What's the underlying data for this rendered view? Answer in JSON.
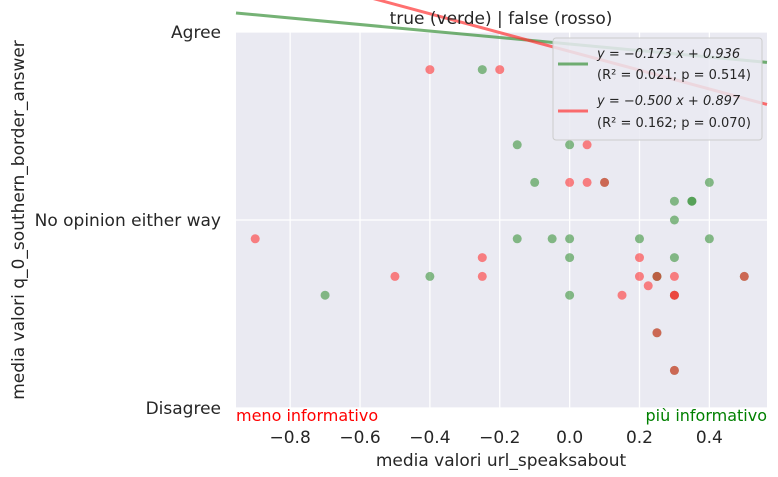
{
  "chart_data": {
    "type": "scatter",
    "title": "true (verde) | false (rosso)",
    "xlabel": "media valori url_speaksabout",
    "ylabel": "media valori q_0_southern_border_answer",
    "xlim": [
      -0.955,
      0.565
    ],
    "ylim": [
      -1,
      1
    ],
    "grid": true,
    "legend_position": "top-right",
    "x_ticks": [
      -0.8,
      -0.6,
      -0.4,
      -0.2,
      0.0,
      0.2,
      0.4
    ],
    "x_tick_labels": [
      "−0.8",
      "−0.6",
      "−0.4",
      "−0.2",
      "0.0",
      "0.2",
      "0.4"
    ],
    "y_ticks": [
      -1,
      0,
      1
    ],
    "y_tick_labels": [
      "Disagree",
      "No opinion either way",
      "Agree"
    ],
    "corner_labels": {
      "left": "meno informativo",
      "right": "più informativo",
      "left_color": "#ff0000",
      "right_color": "#008000"
    },
    "series": [
      {
        "color": "#3a923a",
        "points": [
          [
            -0.25,
            0.8
          ],
          [
            -0.15,
            0.4
          ],
          [
            0.0,
            0.4
          ],
          [
            -0.1,
            0.2
          ],
          [
            0.1,
            0.2
          ],
          [
            0.4,
            0.2
          ],
          [
            0.3,
            0.1
          ],
          [
            0.35,
            0.1
          ],
          [
            0.35,
            0.1
          ],
          [
            0.3,
            0.0
          ],
          [
            -0.15,
            -0.1
          ],
          [
            -0.05,
            -0.1
          ],
          [
            0.0,
            -0.1
          ],
          [
            0.2,
            -0.1
          ],
          [
            0.4,
            -0.1
          ],
          [
            0.0,
            -0.2
          ],
          [
            0.3,
            -0.2
          ],
          [
            -0.4,
            -0.3
          ],
          [
            0.25,
            -0.3
          ],
          [
            0.25,
            -0.3
          ],
          [
            0.5,
            -0.3
          ],
          [
            -0.7,
            -0.4
          ],
          [
            0.0,
            -0.4
          ],
          [
            0.3,
            -0.4
          ],
          [
            0.25,
            -0.6
          ],
          [
            0.3,
            -0.8
          ]
        ],
        "fit": {
          "slope": -0.173,
          "intercept": 0.936
        },
        "legend_line1": "y = −0.173 x + 0.936",
        "legend_line2": "(R² = 0.021; p = 0.514)"
      },
      {
        "color": "#ff3333",
        "points": [
          [
            -0.4,
            0.8
          ],
          [
            -0.2,
            0.8
          ],
          [
            0.05,
            0.4
          ],
          [
            0.0,
            0.2
          ],
          [
            0.05,
            0.2
          ],
          [
            0.1,
            0.2
          ],
          [
            -0.9,
            -0.1
          ],
          [
            -0.25,
            -0.2
          ],
          [
            0.2,
            -0.2
          ],
          [
            -0.5,
            -0.3
          ],
          [
            -0.25,
            -0.3
          ],
          [
            0.2,
            -0.3
          ],
          [
            0.25,
            -0.3
          ],
          [
            0.3,
            -0.3
          ],
          [
            0.5,
            -0.3
          ],
          [
            0.225,
            -0.35
          ],
          [
            0.15,
            -0.4
          ],
          [
            0.3,
            -0.4
          ],
          [
            0.3,
            -0.4
          ],
          [
            0.25,
            -0.6
          ],
          [
            0.3,
            -0.8
          ]
        ],
        "fit": {
          "slope": -0.5,
          "intercept": 0.897
        },
        "legend_line1": "y = −0.500 x + 0.897",
        "legend_line2": "(R² = 0.162; p = 0.070)"
      }
    ]
  }
}
